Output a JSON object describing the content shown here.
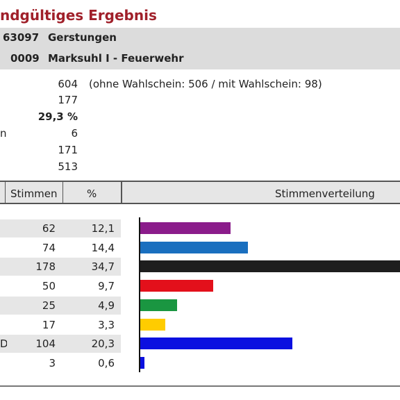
{
  "title": "ndgültiges Ergebnis",
  "municipality": {
    "code": "63097",
    "name": "Gerstungen"
  },
  "district": {
    "code": "0009",
    "name": "Marksuhl I - Feuerwehr"
  },
  "stats": {
    "eligible": "604",
    "eligible_note": "(ohne Wahlschein: 506 / mit Wahlschein: 98)",
    "voters": "177",
    "turnout": "29,3 %",
    "fragment_label": "n",
    "invalid": "6",
    "valid": "171",
    "votes_total": "513"
  },
  "table": {
    "col_votes": "Stimmen",
    "col_pct": "%",
    "col_distribution": "Stimmenverteilung",
    "max_votes": 178,
    "rows": [
      {
        "left": "",
        "votes": "62",
        "pct": "12,1",
        "value": 62,
        "color": "#8b1c8b"
      },
      {
        "left": "",
        "votes": "74",
        "pct": "14,4",
        "value": 74,
        "color": "#1a6fbf"
      },
      {
        "left": "",
        "votes": "178",
        "pct": "34,7",
        "value": 178,
        "color": "#1e1e1e"
      },
      {
        "left": "",
        "votes": "50",
        "pct": "9,7",
        "value": 50,
        "color": "#e3101b"
      },
      {
        "left": "",
        "votes": "25",
        "pct": "4,9",
        "value": 25,
        "color": "#1a9641"
      },
      {
        "left": "",
        "votes": "17",
        "pct": "3,3",
        "value": 17,
        "color": "#ffcc00"
      },
      {
        "left": "D",
        "votes": "104",
        "pct": "20,3",
        "value": 104,
        "color": "#0b10e0"
      },
      {
        "left": "",
        "votes": "3",
        "pct": "0,6",
        "value": 3,
        "color": "#0b10e0"
      }
    ]
  }
}
